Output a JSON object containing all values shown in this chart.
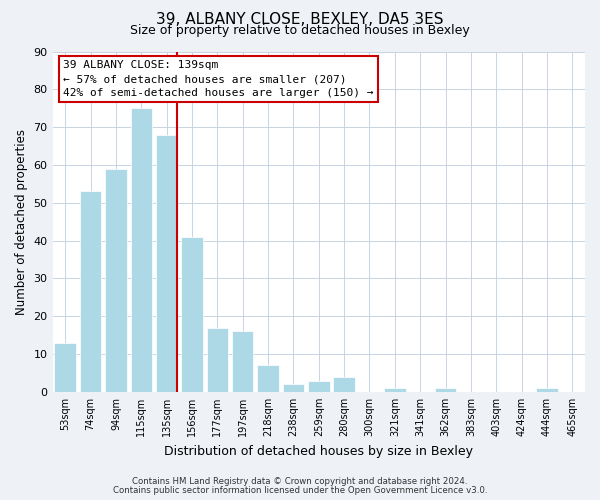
{
  "title1": "39, ALBANY CLOSE, BEXLEY, DA5 3ES",
  "title2": "Size of property relative to detached houses in Bexley",
  "xlabel": "Distribution of detached houses by size in Bexley",
  "ylabel": "Number of detached properties",
  "categories": [
    "53sqm",
    "74sqm",
    "94sqm",
    "115sqm",
    "135sqm",
    "156sqm",
    "177sqm",
    "197sqm",
    "218sqm",
    "238sqm",
    "259sqm",
    "280sqm",
    "300sqm",
    "321sqm",
    "341sqm",
    "362sqm",
    "383sqm",
    "403sqm",
    "424sqm",
    "444sqm",
    "465sqm"
  ],
  "values": [
    13,
    53,
    59,
    75,
    68,
    41,
    17,
    16,
    7,
    2,
    3,
    4,
    0,
    1,
    0,
    1,
    0,
    0,
    0,
    1,
    0
  ],
  "bar_color": "#add8e6",
  "vline_color": "#cc0000",
  "vline_index": 4,
  "annotation_text": "39 ALBANY CLOSE: 139sqm\n← 57% of detached houses are smaller (207)\n42% of semi-detached houses are larger (150) →",
  "annotation_box_color": "#ffffff",
  "annotation_box_edge": "#cc0000",
  "ylim": [
    0,
    90
  ],
  "yticks": [
    0,
    10,
    20,
    30,
    40,
    50,
    60,
    70,
    80,
    90
  ],
  "footer1": "Contains HM Land Registry data © Crown copyright and database right 2024.",
  "footer2": "Contains public sector information licensed under the Open Government Licence v3.0.",
  "bg_color": "#eef2f7",
  "plot_bg_color": "#ffffff",
  "grid_color": "#c8d4e0"
}
